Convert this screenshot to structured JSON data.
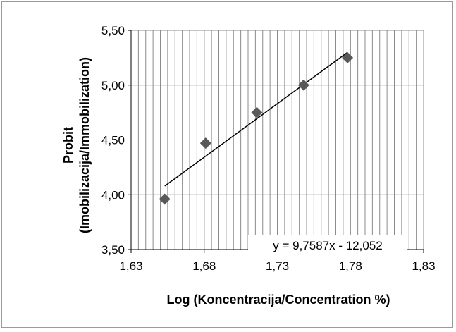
{
  "chart_data": {
    "type": "scatter",
    "title": "",
    "xlabel": "Log (Koncentracija/Concentration %)",
    "ylabel_line1": "Probit",
    "ylabel_line2": "(Imobilizacija/Immobilization)",
    "xlim": [
      1.63,
      1.83
    ],
    "ylim": [
      3.5,
      5.5
    ],
    "x_ticks": [
      1.63,
      1.68,
      1.73,
      1.78,
      1.83
    ],
    "x_tick_labels": [
      "1,63",
      "1,68",
      "1,73",
      "1,78",
      "1,83"
    ],
    "y_ticks": [
      3.5,
      4.0,
      4.5,
      5.0,
      5.5
    ],
    "y_tick_labels": [
      "3,50",
      "4,00",
      "4,50",
      "5,00",
      "5,50"
    ],
    "x_minor_step": 0.005,
    "grid": true,
    "legend": "none",
    "series": [
      {
        "x": [
          1.653,
          1.681,
          1.716,
          1.748,
          1.778
        ],
        "y": [
          3.96,
          4.47,
          4.75,
          5.0,
          5.25
        ],
        "marker": "diamond",
        "color": "#595959"
      }
    ],
    "trendline": {
      "equation": "y = 9,7587x - 12,052",
      "slope": 9.7587,
      "intercept": -12.052,
      "x_range": [
        1.653,
        1.778
      ],
      "color": "#000000"
    }
  }
}
